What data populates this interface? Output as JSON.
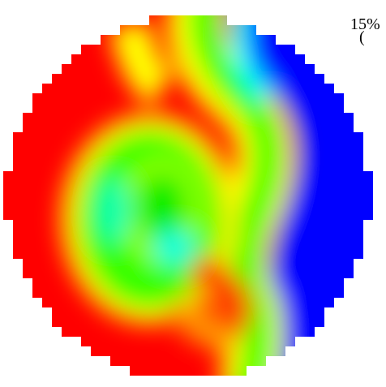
{
  "labels": {
    "top": "15%",
    "second": "("
  }
}
